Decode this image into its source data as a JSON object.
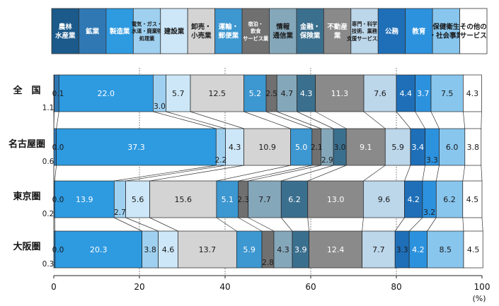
{
  "chart_data": {
    "type": "bar",
    "orientation": "horizontal",
    "stacked": true,
    "normalized_percent": true,
    "categories": [
      "全　国",
      "名古屋圏",
      "東京圏",
      "大阪圏"
    ],
    "legend_position": "top",
    "xlim": [
      0,
      100
    ],
    "xticks": [
      "0",
      "20",
      "40",
      "60",
      "80",
      "100"
    ],
    "xunit": "(%)",
    "grid": "dotted vertical at 20,40,60,80",
    "series": [
      {
        "name": "農林\n水産業",
        "color": "#1b5a8a",
        "text_color": "#ffffff",
        "values": [
          0.1,
          0.0,
          0.0,
          0.0
        ]
      },
      {
        "name": "鉱業",
        "color": "#2f78b4",
        "text_color": "#ffffff",
        "values": [
          1.1,
          0.6,
          0.2,
          0.3
        ]
      },
      {
        "name": "製造業",
        "color": "#2e9ae0",
        "text_color": "#ffffff",
        "values": [
          22.0,
          37.3,
          13.9,
          20.3
        ]
      },
      {
        "name": "電気・ガス・\n水道・廃棄物\n処理業",
        "color": "#9fd0f0",
        "text_color": "#1a1a1a",
        "values": [
          3.0,
          2.2,
          2.7,
          3.8
        ]
      },
      {
        "name": "建設業",
        "color": "#cde7f8",
        "text_color": "#1a1a1a",
        "values": [
          5.7,
          4.3,
          5.6,
          4.6
        ]
      },
      {
        "name": "卸売・\n小売業",
        "color": "#d4d4d4",
        "text_color": "#1a1a1a",
        "values": [
          12.5,
          10.9,
          15.6,
          13.7
        ]
      },
      {
        "name": "運輸・\n郵便業",
        "color": "#3d97d0",
        "text_color": "#ffffff",
        "values": [
          5.2,
          5.0,
          5.1,
          5.9
        ]
      },
      {
        "name": "宿泊・\n飲食\nサービス業",
        "color": "#707070",
        "text_color": "#ffffff",
        "values": [
          2.5,
          2.1,
          2.3,
          2.8
        ]
      },
      {
        "name": "情報\n通信業",
        "color": "#85a7ba",
        "text_color": "#1a1a1a",
        "values": [
          4.7,
          2.9,
          7.7,
          4.3
        ]
      },
      {
        "name": "金融・\n保険業",
        "color": "#3b6f8e",
        "text_color": "#ffffff",
        "values": [
          4.3,
          3.0,
          6.2,
          3.9
        ]
      },
      {
        "name": "不動産\n業",
        "color": "#8a8a8a",
        "text_color": "#ffffff",
        "values": [
          11.3,
          9.1,
          13.0,
          12.4
        ]
      },
      {
        "name": "専門・科学\n技術、業務\n支援サービス業",
        "color": "#bcd6ea",
        "text_color": "#1a1a1a",
        "values": [
          7.6,
          5.9,
          9.6,
          7.7
        ]
      },
      {
        "name": "公務",
        "color": "#1f6fb8",
        "text_color": "#ffffff",
        "values": [
          4.4,
          3.4,
          4.2,
          3.3
        ]
      },
      {
        "name": "教育",
        "color": "#2d92de",
        "text_color": "#ffffff",
        "values": [
          3.7,
          3.3,
          3.2,
          4.2
        ]
      },
      {
        "name": "保健衛生\n・社会事業",
        "color": "#88c6ee",
        "text_color": "#1a1a1a",
        "values": [
          7.5,
          6.0,
          6.2,
          8.5
        ]
      },
      {
        "name": "その他の\nサービス",
        "color": "#ffffff",
        "text_color": "#1a1a1a",
        "values": [
          4.3,
          3.8,
          4.5,
          4.5
        ]
      }
    ]
  }
}
